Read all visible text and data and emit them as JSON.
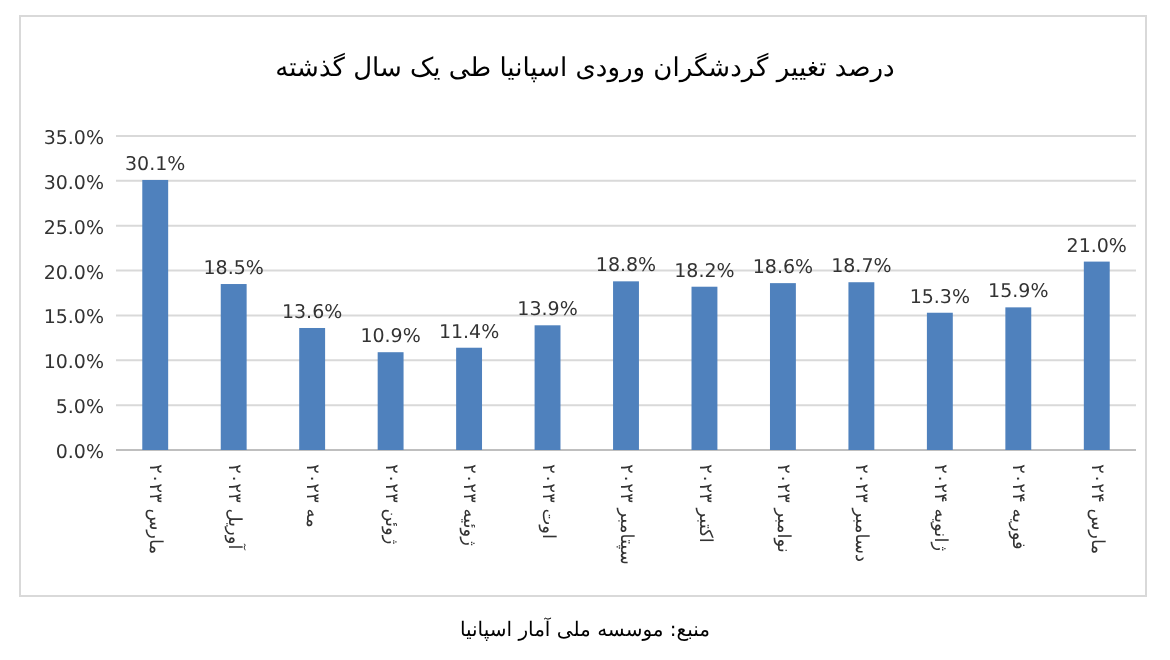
{
  "chart_data": {
    "type": "bar",
    "title": "درصد تغییر گردشگران ورودی اسپانیا طی یک سال گذشته",
    "categories": [
      "مارس ۲۰۲۳",
      "آوریل ۲۰۲۳",
      "مه ۲۰۲۳",
      "ژوئن ۲۰۲۳",
      "ژوئیه ۲۰۲۳",
      "اوت ۲۰۲۳",
      "سپتامبر ۲۰۲۳",
      "اکتبر ۲۰۲۳",
      "نوامبر ۲۰۲۳",
      "دسامبر ۲۰۲۳",
      "ژانویه ۲۰۲۴",
      "فوریه ۲۰۲۴",
      "مارس ۲۰۲۴"
    ],
    "values": [
      30.1,
      18.5,
      13.6,
      10.9,
      11.4,
      13.9,
      18.8,
      18.2,
      18.6,
      18.7,
      15.3,
      15.9,
      21.0
    ],
    "value_labels": [
      "30.1%",
      "18.5%",
      "13.6%",
      "10.9%",
      "11.4%",
      "13.9%",
      "18.8%",
      "18.2%",
      "18.6%",
      "18.7%",
      "15.3%",
      "15.9%",
      "21.0%"
    ],
    "color": "#4f81bd",
    "grid": "y",
    "ylim": [
      0,
      35
    ],
    "yticks": [
      {
        "value": 0,
        "label": "0.0%"
      },
      {
        "value": 5,
        "label": "5.0%"
      },
      {
        "value": 10,
        "label": "10.0%"
      },
      {
        "value": 15,
        "label": "15.0%"
      },
      {
        "value": 20,
        "label": "20.0%"
      },
      {
        "value": 25,
        "label": "25.0%"
      },
      {
        "value": 30,
        "label": "30.0%"
      },
      {
        "value": 35,
        "label": "35.0%"
      }
    ],
    "annotations": [
      "منبع: موسسه ملی آمار اسپانیا"
    ]
  }
}
